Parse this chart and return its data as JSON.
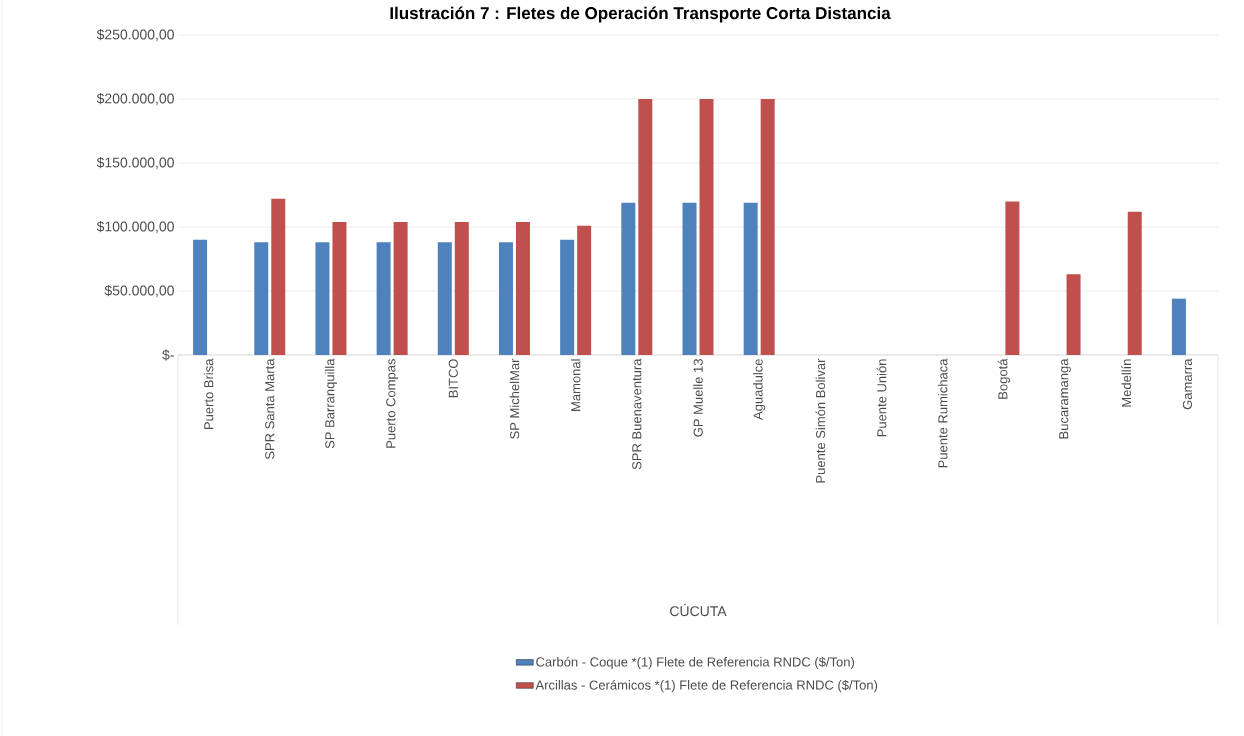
{
  "chart_data": {
    "type": "bar",
    "title": "Ilustración 7 : Fletes de Operación Transporte Corta Distancia",
    "annotations": [
      "CÚCUTA"
    ],
    "categories": [
      "Puerto Brisa",
      "SPR Santa Marta",
      "SP Barranquilla",
      "Puerto Compas",
      "BITCO",
      "SP MichelMar",
      "Mamonal",
      "SPR Buenaventura",
      "GP Muelle 13",
      "Aguadulce",
      "Puente Simón Bolivar",
      "Puente Unión",
      "Puente Rumichaca",
      "Bogotá",
      "Bucaramanga",
      "Medellín",
      "Gamarra"
    ],
    "series": [
      {
        "name": "Carbón - Coque *(1) Flete de Referencia RNDC ($/Ton)",
        "color": "#4f81bd",
        "values": [
          90000,
          88000,
          88000,
          88000,
          88000,
          88000,
          90000,
          119000,
          119000,
          119000,
          null,
          null,
          null,
          null,
          null,
          null,
          44000
        ]
      },
      {
        "name": "Arcillas - Cerámicos *(1) Flete de Referencia RNDC ($/Ton)",
        "color": "#c0504d",
        "values": [
          null,
          122000,
          104000,
          104000,
          104000,
          104000,
          101000,
          200000,
          200000,
          200000,
          null,
          null,
          null,
          120000,
          63000,
          112000,
          null
        ]
      }
    ],
    "ylim": [
      0,
      250000
    ],
    "yticks": [
      {
        "value": 0,
        "label": "$-"
      },
      {
        "value": 50000,
        "label": "$50.000,00"
      },
      {
        "value": 100000,
        "label": "$100.000,00"
      },
      {
        "value": 150000,
        "label": "$150.000,00"
      },
      {
        "value": 200000,
        "label": "$200.000,00"
      },
      {
        "value": 250000,
        "label": "$250.000,00"
      }
    ],
    "grid": "y",
    "legend": "bottom"
  }
}
